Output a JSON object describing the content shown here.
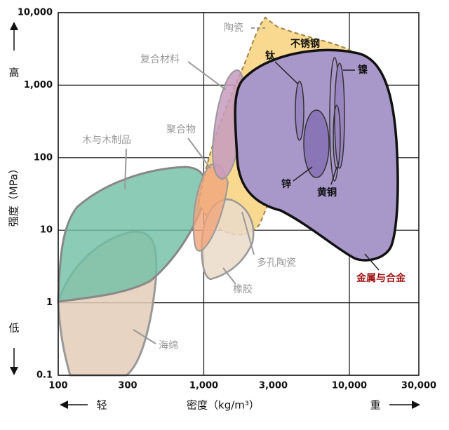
{
  "chart_data": {
    "type": "material-map",
    "y_label": "强度（MPa）",
    "y_high": "高",
    "y_low": "低",
    "x_label": "密度（kg/m³）",
    "x_low": "轻",
    "x_high": "重",
    "log_x": true,
    "log_y": true,
    "grid": true,
    "xlim": [
      100,
      30000
    ],
    "ylim": [
      0.1,
      10000
    ],
    "xticks": [
      100,
      300,
      {
        "value": 1000,
        "label": "1,000"
      },
      {
        "value": 3000,
        "label": "3,000"
      },
      {
        "value": 10000,
        "label": "10,000"
      },
      {
        "value": 30000,
        "label": "30,000"
      }
    ],
    "yticks": [
      0.1,
      1,
      10,
      100,
      {
        "value": 1000,
        "label": "1,000"
      },
      {
        "value": 10000,
        "label": "10,000"
      }
    ],
    "annotations": [
      "陶瓷",
      "复合材料",
      "不锈钢",
      "钛",
      "镍",
      "聚合物",
      "木与木制品",
      "锌",
      "黄铜",
      "多孔陶瓷",
      "橡胶",
      "金属与合金",
      "海绵"
    ]
  }
}
